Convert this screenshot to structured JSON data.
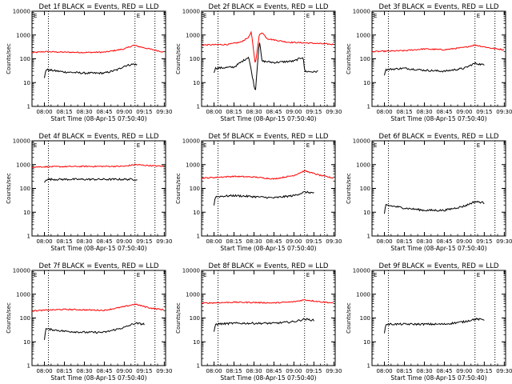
{
  "figure": {
    "panels": [
      {
        "title": "Det 1f BLACK = Events, RED = LLD"
      },
      {
        "title": "Det 2f BLACK = Events, RED = LLD"
      },
      {
        "title": "Det 3f BLACK = Events, RED = LLD"
      },
      {
        "title": "Det 4f BLACK = Events, RED = LLD"
      },
      {
        "title": "Det 5f BLACK = Events, RED = LLD"
      },
      {
        "title": "Det 6f BLACK = Events, RED = LLD"
      },
      {
        "title": "Det 7f BLACK = Events, RED = LLD"
      },
      {
        "title": "Det 8f BLACK = Events, RED = LLD"
      },
      {
        "title": "Det 9f BLACK = Events, RED = LLD"
      }
    ],
    "xlabel": "Start Time (08-Apr-15 07:50:40)",
    "ylabel": "Counts/sec",
    "x_tick_labels": [
      "08:00",
      "08:15",
      "08:30",
      "08:45",
      "09:00",
      "09:15",
      "09:30"
    ],
    "y_tick_labels": [
      "1",
      "10",
      "100",
      "1000",
      "10000"
    ],
    "marker_labels": [
      "E",
      "E"
    ]
  },
  "chart_data": [
    {
      "type": "line",
      "title": "Det 1f BLACK = Events, RED = LLD",
      "xlabel": "Start Time (08-Apr-15 07:50:40)",
      "ylabel": "Counts/sec",
      "yscale": "log",
      "ylim": [
        1,
        10000
      ],
      "xlim": [
        "07:50:40",
        "09:31"
      ],
      "markers": [
        "08:03",
        "09:08",
        "09:23"
      ],
      "series": [
        {
          "color": "#ff0000",
          "x": [
            "07:50:40",
            "08:00",
            "08:15",
            "08:30",
            "08:45",
            "09:00",
            "09:07",
            "09:15",
            "09:30"
          ],
          "values": [
            180,
            200,
            190,
            185,
            190,
            260,
            370,
            290,
            190
          ]
        },
        {
          "color": "#000000",
          "x": [
            "08:00",
            "08:01",
            "08:15",
            "08:30",
            "08:45",
            "08:55",
            "09:00",
            "09:07",
            "09:10"
          ],
          "values": [
            15,
            35,
            28,
            25,
            25,
            35,
            50,
            60,
            55
          ]
        }
      ]
    },
    {
      "type": "line",
      "title": "Det 2f BLACK = Events, RED = LLD",
      "xlabel": "Start Time (08-Apr-15 07:50:40)",
      "ylabel": "Counts/sec",
      "yscale": "log",
      "ylim": [
        1,
        10000
      ],
      "xlim": [
        "07:50:40",
        "09:31"
      ],
      "markers": [
        "08:03",
        "09:08",
        "09:23"
      ],
      "series": [
        {
          "color": "#ff0000",
          "x": [
            "07:50:40",
            "08:10",
            "08:20",
            "08:26",
            "08:28",
            "08:31",
            "08:34",
            "08:36",
            "08:40",
            "08:55",
            "09:15",
            "09:30"
          ],
          "values": [
            380,
            400,
            500,
            800,
            1300,
            60,
            1000,
            1300,
            700,
            500,
            450,
            400
          ]
        },
        {
          "color": "#000000",
          "x": [
            "08:00",
            "08:01",
            "08:15",
            "08:26",
            "08:31",
            "08:34",
            "08:36",
            "08:45",
            "09:00",
            "09:07",
            "09:08",
            "09:15",
            "09:18"
          ],
          "values": [
            28,
            40,
            45,
            120,
            4,
            600,
            80,
            70,
            80,
            120,
            30,
            28,
            30
          ]
        }
      ]
    },
    {
      "type": "line",
      "title": "Det 3f BLACK = Events, RED = LLD",
      "xlabel": "Start Time (08-Apr-15 07:50:40)",
      "ylabel": "Counts/sec",
      "yscale": "log",
      "ylim": [
        1,
        10000
      ],
      "xlim": [
        "07:50:40",
        "09:31"
      ],
      "markers": [
        "08:03",
        "09:08",
        "09:23"
      ],
      "series": [
        {
          "color": "#ff0000",
          "x": [
            "07:50:40",
            "08:15",
            "08:30",
            "08:45",
            "09:00",
            "09:08",
            "09:20",
            "09:30"
          ],
          "values": [
            200,
            220,
            260,
            240,
            300,
            380,
            280,
            240
          ]
        },
        {
          "color": "#000000",
          "x": [
            "08:00",
            "08:01",
            "08:15",
            "08:30",
            "08:45",
            "09:00",
            "09:08",
            "09:15"
          ],
          "values": [
            22,
            35,
            40,
            33,
            30,
            40,
            65,
            55
          ]
        }
      ]
    },
    {
      "type": "line",
      "title": "Det 4f BLACK = Events, RED = LLD",
      "xlabel": "Start Time (08-Apr-15 07:50:40)",
      "ylabel": "Counts/sec",
      "yscale": "log",
      "ylim": [
        1,
        10000
      ],
      "xlim": [
        "07:50:40",
        "09:31"
      ],
      "markers": [
        "08:03",
        "09:08",
        "09:23"
      ],
      "series": [
        {
          "color": "#ff0000",
          "x": [
            "07:50:40",
            "08:30",
            "09:00",
            "09:08",
            "09:20",
            "09:30"
          ],
          "values": [
            800,
            840,
            850,
            1000,
            900,
            850
          ]
        },
        {
          "color": "#000000",
          "x": [
            "08:00",
            "08:01",
            "08:30",
            "09:00",
            "09:10"
          ],
          "values": [
            170,
            240,
            240,
            240,
            240
          ]
        }
      ]
    },
    {
      "type": "line",
      "title": "Det 5f BLACK = Events, RED = LLD",
      "xlabel": "Start Time (08-Apr-15 07:50:40)",
      "ylabel": "Counts/sec",
      "yscale": "log",
      "ylim": [
        1,
        10000
      ],
      "xlim": [
        "07:50:40",
        "09:31"
      ],
      "markers": [
        "08:03",
        "09:08",
        "09:23"
      ],
      "series": [
        {
          "color": "#ff0000",
          "x": [
            "07:50:40",
            "08:15",
            "08:30",
            "08:45",
            "09:00",
            "09:08",
            "09:20",
            "09:30"
          ],
          "values": [
            270,
            320,
            300,
            250,
            350,
            550,
            350,
            270
          ]
        },
        {
          "color": "#000000",
          "x": [
            "08:00",
            "08:01",
            "08:15",
            "08:30",
            "08:45",
            "09:00",
            "09:08",
            "09:15"
          ],
          "values": [
            20,
            45,
            50,
            45,
            40,
            50,
            70,
            65
          ]
        }
      ]
    },
    {
      "type": "line",
      "title": "Det 6f BLACK = Events, RED = LLD",
      "xlabel": "Start Time (08-Apr-15 07:50:40)",
      "ylabel": "Counts/sec",
      "yscale": "log",
      "ylim": [
        1,
        10000
      ],
      "xlim": [
        "07:50:40",
        "09:31"
      ],
      "markers": [
        "08:03",
        "09:08",
        "09:23"
      ],
      "series": [
        {
          "color": "#000000",
          "x": [
            "08:00",
            "08:01",
            "08:15",
            "08:30",
            "08:45",
            "09:00",
            "09:08",
            "09:15"
          ],
          "values": [
            8,
            20,
            15,
            12,
            12,
            18,
            28,
            25
          ]
        }
      ]
    },
    {
      "type": "line",
      "title": "Det 7f BLACK = Events, RED = LLD",
      "xlabel": "Start Time (08-Apr-15 07:50:40)",
      "ylabel": "Counts/sec",
      "yscale": "log",
      "ylim": [
        1,
        10000
      ],
      "xlim": [
        "07:50:40",
        "09:31"
      ],
      "markers": [
        "08:03",
        "09:08",
        "09:23"
      ],
      "series": [
        {
          "color": "#ff0000",
          "x": [
            "07:50:40",
            "08:15",
            "08:30",
            "08:45",
            "09:00",
            "09:08",
            "09:20",
            "09:30"
          ],
          "values": [
            200,
            230,
            220,
            210,
            300,
            380,
            260,
            220
          ]
        },
        {
          "color": "#000000",
          "x": [
            "08:00",
            "08:01",
            "08:15",
            "08:30",
            "08:45",
            "09:00",
            "09:08",
            "09:15"
          ],
          "values": [
            13,
            35,
            28,
            25,
            25,
            40,
            60,
            55
          ]
        }
      ]
    },
    {
      "type": "line",
      "title": "Det 8f BLACK = Events, RED = LLD",
      "xlabel": "Start Time (08-Apr-15 07:50:40)",
      "ylabel": "Counts/sec",
      "yscale": "log",
      "ylim": [
        1,
        10000
      ],
      "xlim": [
        "07:50:40",
        "09:31"
      ],
      "markers": [
        "08:03",
        "09:08",
        "09:23"
      ],
      "series": [
        {
          "color": "#ff0000",
          "x": [
            "07:50:40",
            "08:15",
            "08:30",
            "08:45",
            "09:00",
            "09:08",
            "09:20",
            "09:30"
          ],
          "values": [
            420,
            460,
            450,
            430,
            480,
            580,
            480,
            430
          ]
        },
        {
          "color": "#000000",
          "x": [
            "08:00",
            "08:01",
            "08:15",
            "08:30",
            "08:45",
            "09:00",
            "09:08",
            "09:15"
          ],
          "values": [
            25,
            55,
            60,
            60,
            60,
            70,
            90,
            80
          ]
        }
      ]
    },
    {
      "type": "line",
      "title": "Det 9f BLACK = Events, RED = LLD",
      "xlabel": "Start Time (08-Apr-15 07:50:40)",
      "ylabel": "Counts/sec",
      "yscale": "log",
      "ylim": [
        1,
        10000
      ],
      "xlim": [
        "07:50:40",
        "09:31"
      ],
      "markers": [
        "08:03",
        "09:08",
        "09:23"
      ],
      "series": [
        {
          "color": "#000000",
          "x": [
            "08:00",
            "08:01",
            "08:15",
            "08:30",
            "08:45",
            "09:00",
            "09:08",
            "09:15"
          ],
          "values": [
            22,
            55,
            55,
            55,
            55,
            70,
            90,
            85
          ]
        }
      ]
    }
  ]
}
